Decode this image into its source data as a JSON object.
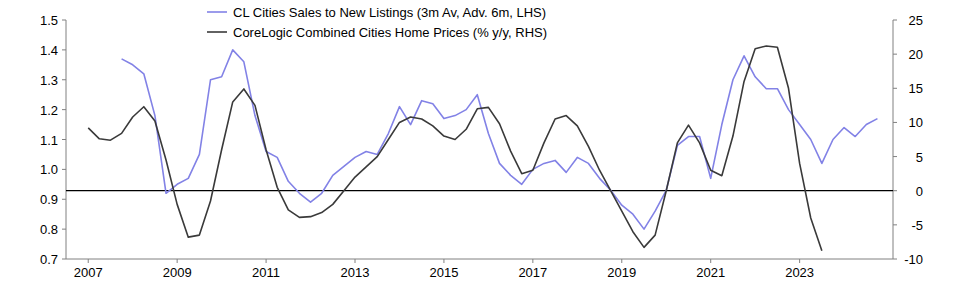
{
  "chart_data": {
    "type": "line",
    "legend": "top",
    "x": [
      2007,
      2007.25,
      2007.5,
      2007.75,
      2008,
      2008.25,
      2008.5,
      2008.75,
      2009,
      2009.25,
      2009.5,
      2009.75,
      2010,
      2010.25,
      2010.5,
      2010.75,
      2011,
      2011.25,
      2011.5,
      2011.75,
      2012,
      2012.25,
      2012.5,
      2012.75,
      2013,
      2013.25,
      2013.5,
      2013.75,
      2014,
      2014.25,
      2014.5,
      2014.75,
      2015,
      2015.25,
      2015.5,
      2015.75,
      2016,
      2016.25,
      2016.5,
      2016.75,
      2017,
      2017.25,
      2017.5,
      2017.75,
      2018,
      2018.25,
      2018.5,
      2018.75,
      2019,
      2019.25,
      2019.5,
      2019.75,
      2020,
      2020.25,
      2020.5,
      2020.75,
      2021,
      2021.25,
      2021.5,
      2021.75,
      2022,
      2022.25,
      2022.5,
      2022.75,
      2023,
      2023.25,
      2023.5,
      2023.75,
      2024,
      2024.25,
      2024.5,
      2024.75
    ],
    "xlim": [
      2006.5,
      2025.1
    ],
    "xticks": [
      2007,
      2009,
      2011,
      2013,
      2015,
      2017,
      2019,
      2021,
      2023
    ],
    "ylim": [
      0.7,
      1.5
    ],
    "yticks": [
      0.7,
      0.8,
      0.9,
      {
        "value": 1,
        "label": "1.0"
      },
      1.1,
      1.2,
      1.3,
      1.4,
      1.5
    ],
    "y2lim": [
      -10,
      25
    ],
    "y2ticks": [
      -10,
      -5,
      0,
      5,
      10,
      15,
      20,
      25
    ],
    "reference_line": {
      "axis": "y2",
      "value": 0
    },
    "series": [
      {
        "name": "CL Cities Sales to New Listings (3m Av, Adv. 6m, LHS)",
        "color": "#8282e6",
        "values": [
          null,
          null,
          null,
          1.37,
          1.35,
          1.32,
          1.18,
          0.92,
          0.95,
          0.97,
          1.05,
          1.3,
          1.31,
          1.4,
          1.36,
          1.18,
          1.06,
          1.04,
          0.96,
          0.92,
          0.89,
          0.92,
          0.98,
          1.01,
          1.04,
          1.06,
          1.05,
          1.12,
          1.21,
          1.15,
          1.23,
          1.22,
          1.17,
          1.18,
          1.2,
          1.25,
          1.12,
          1.02,
          0.98,
          0.95,
          1.0,
          1.02,
          1.03,
          0.99,
          1.04,
          1.02,
          0.97,
          0.93,
          0.88,
          0.85,
          0.8,
          0.86,
          0.93,
          1.08,
          1.11,
          1.11,
          0.97,
          1.15,
          1.3,
          1.38,
          1.31,
          1.27,
          1.27,
          1.2,
          1.15,
          1.1,
          1.02,
          1.1,
          1.14,
          1.11,
          1.15,
          1.17
        ]
      },
      {
        "name": "CoreLogic Combined Cities Home Prices (% y/y, RHS)",
        "color": "#3a3a3a",
        "axis": "y2",
        "values": [
          9.2,
          7.6,
          7.4,
          8.4,
          10.8,
          12.3,
          10.2,
          4.5,
          -2,
          -6.8,
          -6.5,
          -1.5,
          6,
          13,
          14.9,
          12.5,
          6,
          0.5,
          -2.8,
          -3.9,
          -3.8,
          -3.2,
          -2,
          0,
          2,
          3.5,
          5,
          7.5,
          10,
          10.8,
          10.5,
          9.5,
          8,
          7.5,
          9,
          12,
          12.2,
          9.8,
          5.8,
          2.5,
          3,
          7,
          10.5,
          11,
          9.5,
          6.5,
          3,
          0,
          -3,
          -6,
          -8.3,
          -6.5,
          0,
          7,
          9.6,
          7,
          3,
          2.2,
          8,
          16,
          20.8,
          21.2,
          21,
          15,
          4,
          -4,
          -8.8,
          null,
          null,
          null,
          null,
          null
        ]
      }
    ]
  }
}
